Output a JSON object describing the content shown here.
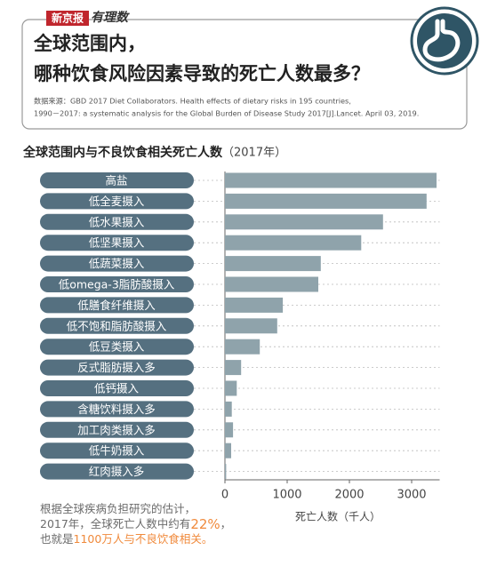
{
  "header": {
    "logo": "新京报",
    "column": "有理数",
    "title": [
      "全球范围内，",
      "哪种饮食风险因素导致的死亡人数最多？"
    ],
    "source": [
      "数据来源：GBD 2017 Diet Collaborators. Health effects of dietary risks in 195 countries,",
      "1990－2017: a systematic analysis for the Global Burden of Disease Study 2017[J].Lancet. April 03, 2019."
    ]
  },
  "chart_data": {
    "type": "barh",
    "title": "全球范围内与不良饮食相关死亡人数",
    "subtitle": "（2017年）",
    "categories": [
      "高盐",
      "低全麦摄入",
      "低水果摄入",
      "低坚果摄入",
      "低蔬菜摄入",
      "低omega-3脂肪酸摄入",
      "低膳食纤维摄入",
      "低不饱和脂肪酸摄入",
      "低豆类摄入",
      "反式脂肪摄入多",
      "低钙摄入",
      "含糖饮料摄入多",
      "加工肉类摄入多",
      "低牛奶摄入",
      "红肉摄入多"
    ],
    "values": [
      3400,
      3240,
      2540,
      2190,
      1540,
      1500,
      930,
      840,
      560,
      260,
      190,
      110,
      130,
      100,
      20
    ],
    "color": "#8fa3ab",
    "label_color": "#557080",
    "xlim": [
      0,
      3450
    ],
    "xticks": [
      0,
      1000,
      2000,
      3000
    ],
    "xlabel": "死亡人数（千人）"
  },
  "note": {
    "lines": [
      [
        "根据全球疾病负担研究的估计，"
      ],
      [
        "2017年，全球死亡人数中约有",
        "22%",
        "，"
      ],
      [
        "也就是",
        "1100万人与不良饮食相关。"
      ]
    ]
  }
}
